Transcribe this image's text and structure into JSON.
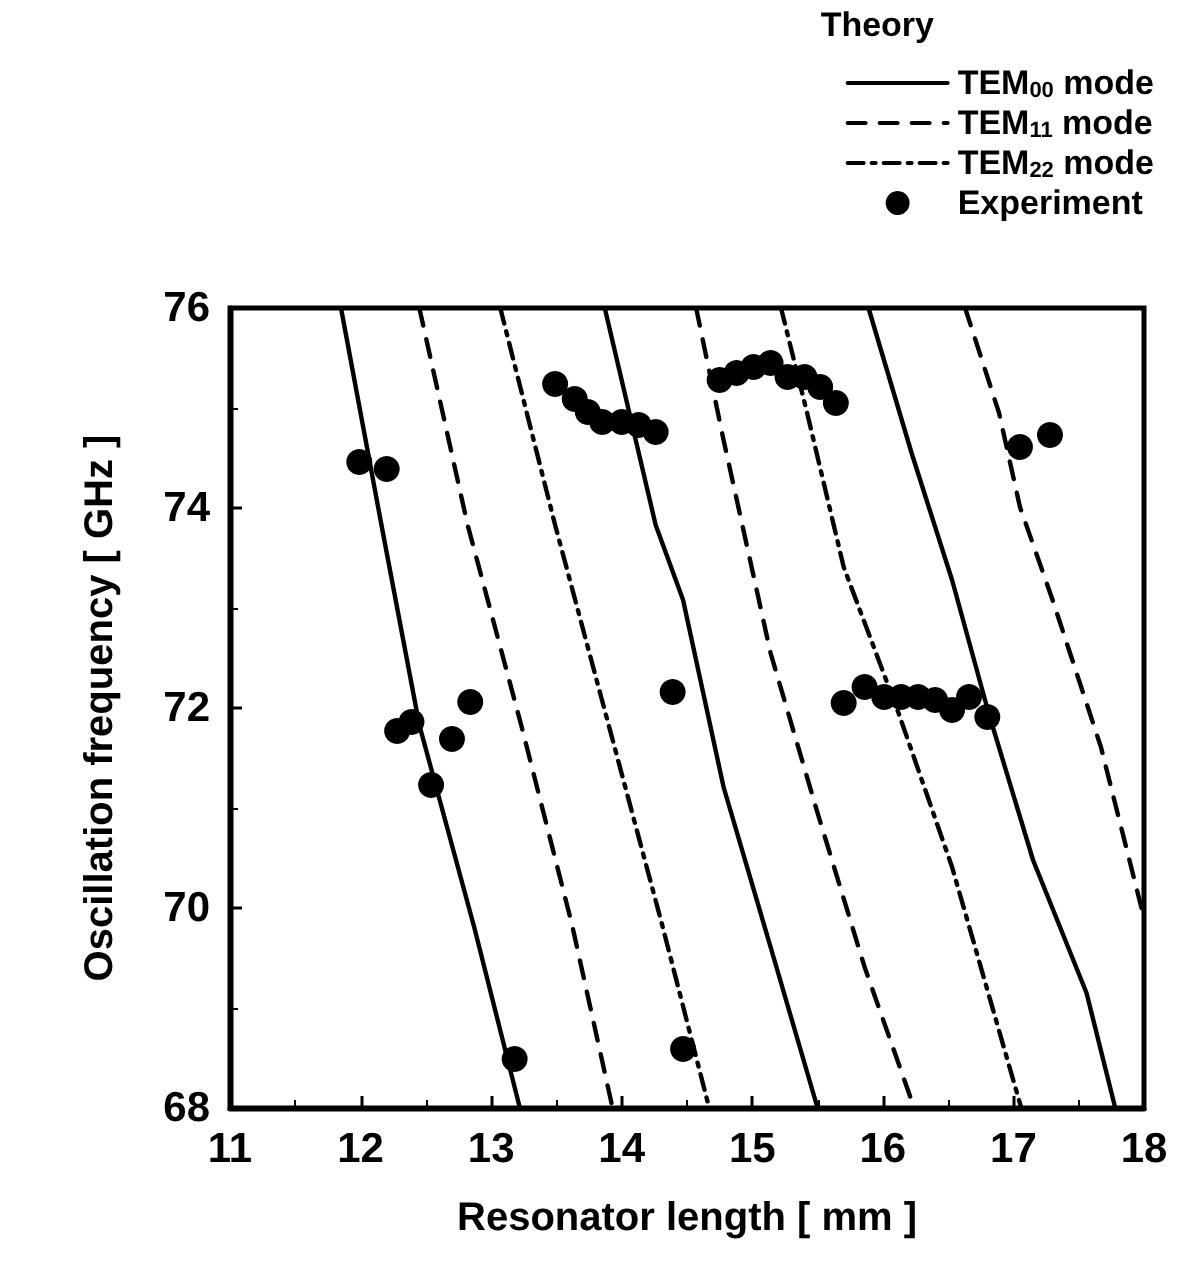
{
  "chart_data": {
    "type": "line",
    "xlabel": "Resonator length [ mm ]",
    "ylabel": "Oscillation frequency [ GHz ]",
    "legend_title": "Theory",
    "legend": "top right",
    "grid": false,
    "xlim": [
      11,
      18
    ],
    "xticks": [
      11,
      12,
      13,
      14,
      15,
      16,
      17,
      18
    ],
    "ylim": [
      68,
      76
    ],
    "yticks": [
      68,
      70,
      72,
      74,
      76
    ],
    "series": [
      {
        "name": "TEM$_{00}$ mode",
        "line_style": "solid",
        "marker": "none",
        "color": "#000000",
        "x": [
          11.85,
          12.16,
          12.45,
          12.87,
          13.22,
          null,
          13.87,
          14.26,
          14.47,
          14.78,
          15.14,
          15.5,
          null,
          15.89,
          16.22,
          16.53,
          16.81,
          17.15,
          17.56,
          17.78
        ],
        "values": [
          76,
          73.83,
          71.83,
          69.81,
          68,
          null,
          76,
          73.83,
          73.08,
          71.21,
          69.61,
          68,
          null,
          76,
          74.55,
          73.28,
          71.95,
          70.48,
          69.15,
          68
        ]
      },
      {
        "name": "TEM$_{11}$ mode",
        "line_style": "dashed",
        "marker": "none",
        "color": "#000000",
        "x": [
          12.45,
          12.82,
          13.23,
          13.62,
          13.93,
          null,
          14.57,
          14.78,
          15.14,
          15.5,
          15.86,
          16.24,
          null,
          16.63,
          16.89,
          17.05,
          17.3,
          17.67,
          18
        ],
        "values": [
          76,
          73.83,
          71.83,
          69.83,
          68,
          null,
          76,
          74.68,
          72.55,
          70.95,
          69.41,
          68,
          null,
          76,
          74.95,
          74.01,
          73.08,
          71.61,
          69.9
        ]
      },
      {
        "name": "TEM$_{22}$ mode",
        "line_style": "dashdot",
        "marker": "none",
        "color": "#000000",
        "x": [
          13.07,
          13.49,
          13.9,
          14.31,
          14.67,
          null,
          15.22,
          15.42,
          15.7,
          16.12,
          16.53,
          17.06
        ],
        "values": [
          76,
          73.83,
          71.83,
          69.83,
          68,
          null,
          76,
          74.95,
          73.41,
          71.95,
          70.41,
          68
        ]
      },
      {
        "name": "Experiment",
        "type": "scatter",
        "marker": "circle",
        "color": "#000000",
        "x": [
          11.99,
          12.2,
          12.28,
          12.39,
          12.7,
          12.84,
          12.54,
          13.18,
          13.49,
          13.64,
          13.74,
          13.85,
          14.0,
          14.13,
          14.26,
          14.39,
          14.47,
          14.75,
          14.88,
          15.01,
          15.14,
          15.27,
          15.4,
          15.52,
          15.64,
          15.7,
          15.86,
          16.01,
          16.14,
          16.27,
          16.4,
          16.53,
          16.66,
          16.8,
          17.05,
          17.28
        ],
        "values": [
          74.46,
          74.39,
          71.77,
          71.86,
          71.69,
          72.06,
          71.23,
          68.49,
          75.24,
          75.09,
          74.96,
          74.86,
          74.86,
          74.83,
          74.76,
          72.16,
          68.59,
          75.28,
          75.35,
          75.41,
          75.45,
          75.31,
          75.31,
          75.21,
          75.05,
          72.05,
          72.21,
          72.11,
          72.11,
          72.11,
          72.08,
          71.98,
          72.11,
          71.91,
          74.61,
          74.73
        ]
      }
    ]
  }
}
